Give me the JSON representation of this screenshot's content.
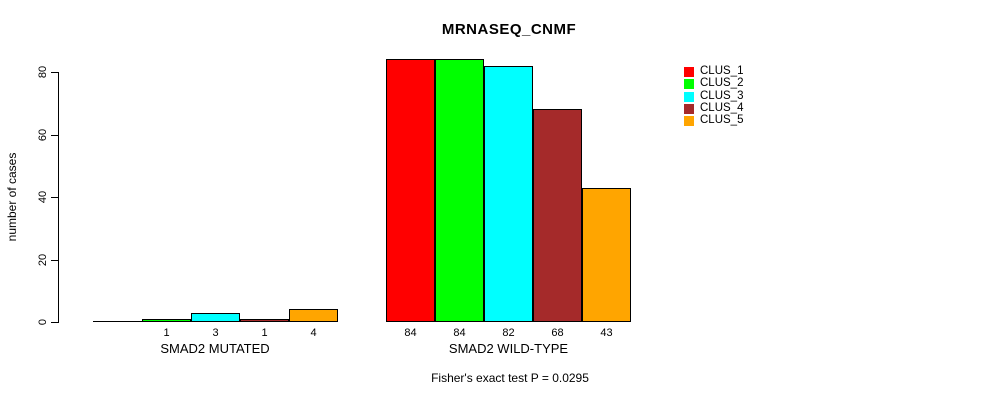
{
  "chart_data": {
    "type": "bar",
    "title": "MRNASEQ_CNMF",
    "ylabel": "number of cases",
    "xlabel": "",
    "ylim": [
      0,
      84
    ],
    "yticks": [
      0,
      20,
      40,
      60,
      80
    ],
    "grid": false,
    "legend_position": "right",
    "categories": [
      "SMAD2 MUTATED",
      "SMAD2 WILD-TYPE"
    ],
    "series": [
      {
        "name": "CLUS_1",
        "color": "#FF0000",
        "values": [
          0,
          84
        ]
      },
      {
        "name": "CLUS_2",
        "color": "#00FF00",
        "values": [
          1,
          84
        ]
      },
      {
        "name": "CLUS_3",
        "color": "#00FFFF",
        "values": [
          3,
          82
        ]
      },
      {
        "name": "CLUS_4",
        "color": "#A52A2A",
        "values": [
          1,
          68
        ]
      },
      {
        "name": "CLUS_5",
        "color": "#FFA500",
        "values": [
          4,
          43
        ]
      }
    ],
    "bar_value_labels": {
      "shown": true,
      "zero_values_unlabeled": true
    },
    "annotation": "Fisher's exact test P = 0.0295"
  }
}
